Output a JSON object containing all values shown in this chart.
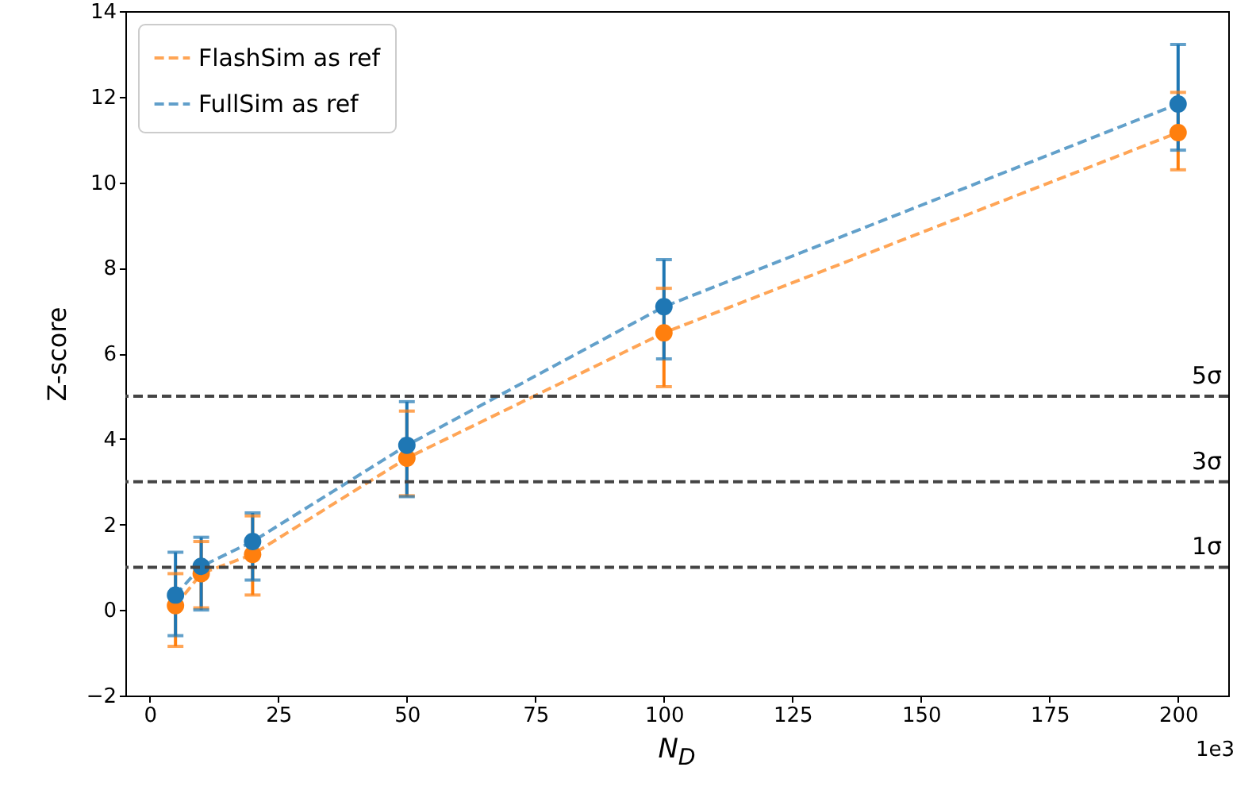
{
  "chart_data": {
    "type": "line",
    "xlabel": "N$_{D}$",
    "ylabel": "Z-score",
    "x": [
      5,
      10,
      20,
      50,
      100,
      200
    ],
    "xlim": [
      -4.75,
      209.75
    ],
    "xticks": [
      0,
      25,
      50,
      75,
      100,
      125,
      150,
      175,
      200
    ],
    "ylim": [
      -2,
      14
    ],
    "yticks": [
      -2,
      0,
      2,
      4,
      6,
      8,
      10,
      12,
      14
    ],
    "series": [
      {
        "name": "FlashSim as ref",
        "color": "#ff7f0e",
        "values": [
          0.1,
          0.85,
          1.3,
          3.55,
          6.48,
          11.16
        ],
        "errors": [
          [
            -0.85,
            0.85
          ],
          [
            0.05,
            1.6
          ],
          [
            0.35,
            2.2
          ],
          [
            2.67,
            4.65
          ],
          [
            5.22,
            7.52
          ],
          [
            10.29,
            12.1
          ]
        ]
      },
      {
        "name": "FullSim as ref",
        "color": "#1f77b4",
        "values": [
          0.35,
          1.02,
          1.6,
          3.85,
          7.09,
          11.83
        ],
        "errors": [
          [
            -0.6,
            1.35
          ],
          [
            0,
            1.7
          ],
          [
            0.7,
            2.27
          ],
          [
            2.65,
            4.87
          ],
          [
            5.87,
            8.19
          ],
          [
            10.75,
            13.22
          ]
        ]
      }
    ],
    "ref_lines": [
      {
        "axis": "y",
        "value": 1,
        "label": "1σ",
        "color": "#444444",
        "line_style": "dashed"
      },
      {
        "axis": "y",
        "value": 3,
        "label": "3σ",
        "color": "#444444",
        "line_style": "dashed"
      },
      {
        "axis": "y",
        "value": 5,
        "label": "5σ",
        "color": "#444444",
        "line_style": "dashed"
      }
    ],
    "annotations": [
      "1e3"
    ],
    "legend": "top left",
    "grid": false,
    "marker": "circle",
    "line_style": "dashed"
  }
}
